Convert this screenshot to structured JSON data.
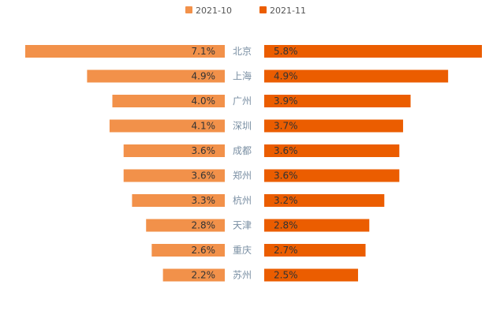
{
  "chart_data": {
    "type": "bar",
    "orientation": "horizontal-butterfly",
    "title": "",
    "xlabel": "",
    "ylabel": "",
    "grid": false,
    "legend_position": "top-center",
    "categories": [
      "北京",
      "上海",
      "广州",
      "深圳",
      "成都",
      "郑州",
      "杭州",
      "天津",
      "重庆",
      "苏州"
    ],
    "series": [
      {
        "name": "2021-10",
        "color": "#f2914a",
        "values": [
          7.1,
          4.9,
          4.0,
          4.1,
          3.6,
          3.6,
          3.3,
          2.8,
          2.6,
          2.2
        ],
        "labels": [
          "7.1%",
          "4.9%",
          "4.0%",
          "4.1%",
          "3.6%",
          "3.6%",
          "3.3%",
          "2.8%",
          "2.6%",
          "2.2%"
        ]
      },
      {
        "name": "2021-11",
        "color": "#eb5d00",
        "values": [
          5.8,
          4.9,
          3.9,
          3.7,
          3.6,
          3.6,
          3.2,
          2.8,
          2.7,
          2.5
        ],
        "labels": [
          "5.8%",
          "4.9%",
          "3.9%",
          "3.7%",
          "3.6%",
          "3.6%",
          "3.2%",
          "2.8%",
          "2.7%",
          "2.5%"
        ]
      }
    ],
    "left_xlim": [
      0,
      7.1
    ],
    "right_xlim": [
      0,
      5.8
    ],
    "unit": "%"
  }
}
